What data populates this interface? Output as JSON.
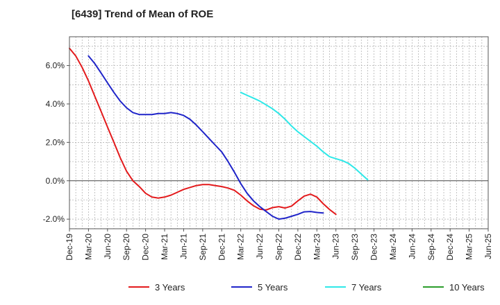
{
  "chart_data": {
    "type": "line",
    "title": "[6439]  Trend of Mean of ROE",
    "xlabel": "",
    "ylabel": "",
    "x_ticks": [
      "Dec-19",
      "Mar-20",
      "Jun-20",
      "Sep-20",
      "Dec-20",
      "Mar-21",
      "Jun-21",
      "Sep-21",
      "Dec-21",
      "Mar-22",
      "Jun-22",
      "Sep-22",
      "Dec-22",
      "Mar-23",
      "Jun-23",
      "Sep-23",
      "Dec-23",
      "Mar-24",
      "Jun-24",
      "Sep-24",
      "Dec-24",
      "Mar-25",
      "Jun-25"
    ],
    "y_ticks": [
      6.0,
      4.0,
      2.0,
      0.0,
      -2.0
    ],
    "y_tick_labels": [
      "6.0%",
      "4.0%",
      "2.0%",
      "0.0%",
      "-2.0%"
    ],
    "ylim": [
      -2.5,
      7.5
    ],
    "grid": true,
    "legend_position": "bottom",
    "series": [
      {
        "name": "3 Years",
        "color": "#e31a1c",
        "start_index": 0,
        "values": [
          6.9,
          6.5,
          5.9,
          5.2,
          4.4,
          3.6,
          2.8,
          2.0,
          1.2,
          0.5,
          0.0,
          -0.3,
          -0.65,
          -0.85,
          -0.9,
          -0.85,
          -0.75,
          -0.6,
          -0.45,
          -0.35,
          -0.25,
          -0.2,
          -0.2,
          -0.25,
          -0.3,
          -0.38,
          -0.5,
          -0.75,
          -1.05,
          -1.3,
          -1.48,
          -1.52,
          -1.4,
          -1.35,
          -1.42,
          -1.32,
          -1.05,
          -0.8,
          -0.7,
          -0.85,
          -1.2,
          -1.5,
          -1.75
        ]
      },
      {
        "name": "5 Years",
        "color": "#1f24c9",
        "start_index": 3,
        "values": [
          6.5,
          6.1,
          5.6,
          5.1,
          4.6,
          4.15,
          3.8,
          3.55,
          3.45,
          3.45,
          3.45,
          3.5,
          3.5,
          3.55,
          3.5,
          3.4,
          3.2,
          2.9,
          2.55,
          2.2,
          1.85,
          1.5,
          1.0,
          0.45,
          -0.15,
          -0.65,
          -1.05,
          -1.35,
          -1.6,
          -1.85,
          -2.0,
          -1.95,
          -1.85,
          -1.75,
          -1.62,
          -1.6,
          -1.65,
          -1.68
        ]
      },
      {
        "name": "7 Years",
        "color": "#2ee8e8",
        "start_index": 27,
        "values": [
          4.6,
          4.45,
          4.3,
          4.15,
          3.95,
          3.75,
          3.5,
          3.2,
          2.85,
          2.55,
          2.3,
          2.05,
          1.8,
          1.5,
          1.25,
          1.15,
          1.05,
          0.9,
          0.65,
          0.35,
          0.05
        ]
      },
      {
        "name": "10 Years",
        "color": "#2a9d2a",
        "start_index": 0,
        "values": []
      }
    ]
  }
}
